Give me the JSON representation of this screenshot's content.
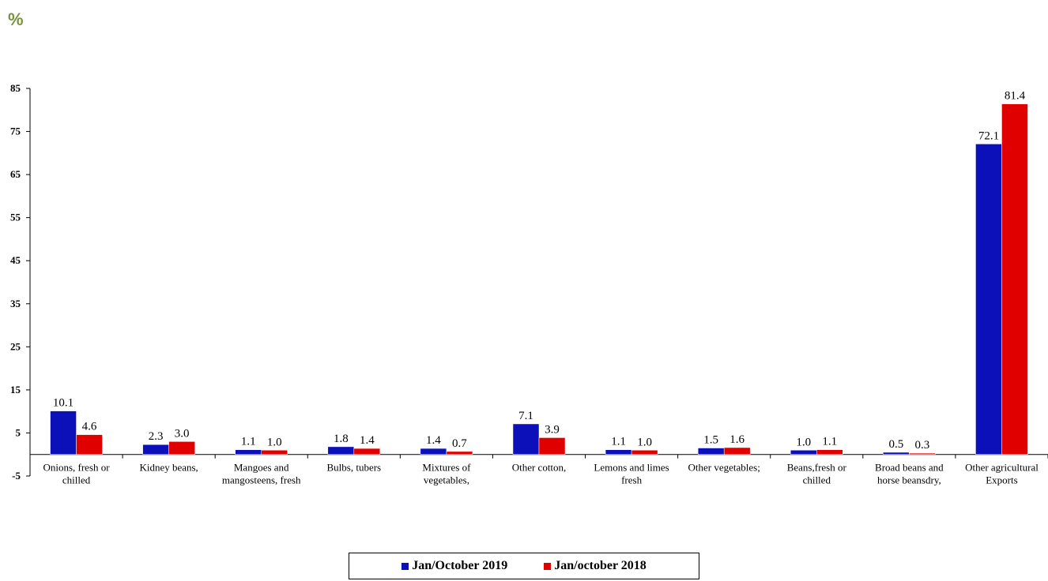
{
  "unit_label": "%",
  "colors": {
    "series1": "#0b10b8",
    "series2": "#e00000",
    "axis": "#000000"
  },
  "chart_data": {
    "type": "bar",
    "title": "",
    "xlabel": "",
    "ylabel": "%",
    "ylim": [
      -5,
      85
    ],
    "yticks": [
      "85",
      "75",
      "65",
      "55",
      "45",
      "35",
      "25",
      "15",
      "5",
      "-5"
    ],
    "grid": false,
    "legend_position": "bottom",
    "categories": [
      [
        "Onions, fresh or",
        "chilled"
      ],
      [
        "Kidney beans,"
      ],
      [
        "Mangoes and",
        "mangosteens, fresh"
      ],
      [
        "Bulbs, tubers"
      ],
      [
        "Mixtures of",
        "vegetables,"
      ],
      [
        "Other cotton,"
      ],
      [
        "Lemons  and limes",
        "fresh"
      ],
      [
        "Other vegetables;"
      ],
      [
        "Beans,fresh or",
        "chilled"
      ],
      [
        "Broad beans  and",
        "horse beansdry,"
      ],
      [
        "Other agricultural",
        "Exports"
      ]
    ],
    "series": [
      {
        "name": "Jan/October 2019",
        "values": [
          10.1,
          2.3,
          1.1,
          1.8,
          1.4,
          7.1,
          1.1,
          1.5,
          1.0,
          0.5,
          72.1
        ],
        "labels": [
          "10.1",
          "2.3",
          "1.1",
          "1.8",
          "1.4",
          "7.1",
          "1.1",
          "1.5",
          "1.0",
          "0.5",
          "72.1"
        ]
      },
      {
        "name": "Jan/october  2018",
        "values": [
          4.6,
          3.0,
          1.0,
          1.4,
          0.7,
          3.9,
          1.0,
          1.6,
          1.1,
          0.3,
          81.4
        ],
        "labels": [
          "4.6",
          "3.0",
          "1.0",
          "1.4",
          "0.7",
          "3.9",
          "1.0",
          "1.6",
          "1.1",
          "0.3",
          "81.4"
        ]
      }
    ]
  }
}
